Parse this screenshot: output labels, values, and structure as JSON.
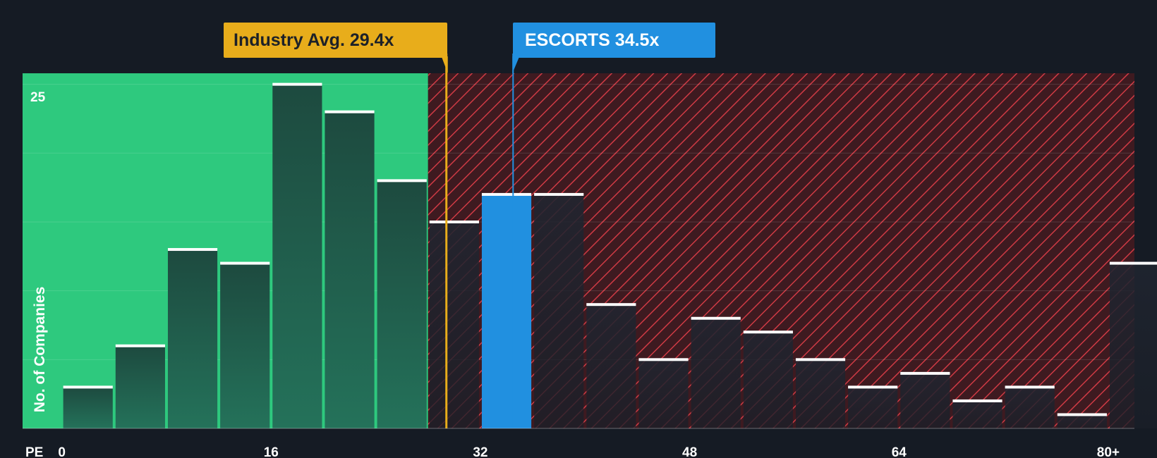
{
  "chart_data": {
    "type": "bar",
    "metric_label": "PE",
    "ylabel": "No. of Companies",
    "y_tick_label": "25",
    "ylim": [
      0,
      25.8
    ],
    "xlim": [
      -3,
      82
    ],
    "x_ticks": [
      {
        "value": 0,
        "label": "0"
      },
      {
        "value": 16,
        "label": "16"
      },
      {
        "value": 32,
        "label": "32"
      },
      {
        "value": 48,
        "label": "48"
      },
      {
        "value": 64,
        "label": "64"
      },
      {
        "value": 80,
        "label": "80+"
      }
    ],
    "bin_width": 4,
    "bins": [
      {
        "start": 0,
        "count": 3
      },
      {
        "start": 4,
        "count": 6
      },
      {
        "start": 8,
        "count": 13
      },
      {
        "start": 12,
        "count": 12
      },
      {
        "start": 16,
        "count": 25
      },
      {
        "start": 20,
        "count": 23
      },
      {
        "start": 24,
        "count": 18
      },
      {
        "start": 28,
        "count": 15
      },
      {
        "start": 32,
        "count": 17,
        "highlight": true
      },
      {
        "start": 36,
        "count": 17
      },
      {
        "start": 40,
        "count": 9
      },
      {
        "start": 44,
        "count": 5
      },
      {
        "start": 48,
        "count": 8
      },
      {
        "start": 52,
        "count": 7
      },
      {
        "start": 56,
        "count": 5
      },
      {
        "start": 60,
        "count": 3
      },
      {
        "start": 64,
        "count": 4
      },
      {
        "start": 68,
        "count": 2
      },
      {
        "start": 72,
        "count": 3
      },
      {
        "start": 76,
        "count": 1
      },
      {
        "start": 80,
        "count": 12
      }
    ],
    "fair_zone_end": 28,
    "industry_avg": {
      "value": 29.4,
      "label": "Industry Avg. 29.4x"
    },
    "company": {
      "name": "ESCORTS",
      "value": 34.5,
      "label": "ESCORTS 34.5x"
    }
  },
  "colors": {
    "background": "#151b24",
    "fair_zone": "#2ec97e",
    "bar_fair": "#1e4e40",
    "bar_over": "#222730",
    "hatch_bg": "#3e1a20",
    "hatch_line": "#cf3a44",
    "highlight": "#2190e0",
    "industry": "#e8ad1b",
    "bar_cap": "#ffffff",
    "tick_text": "#ffffff"
  }
}
